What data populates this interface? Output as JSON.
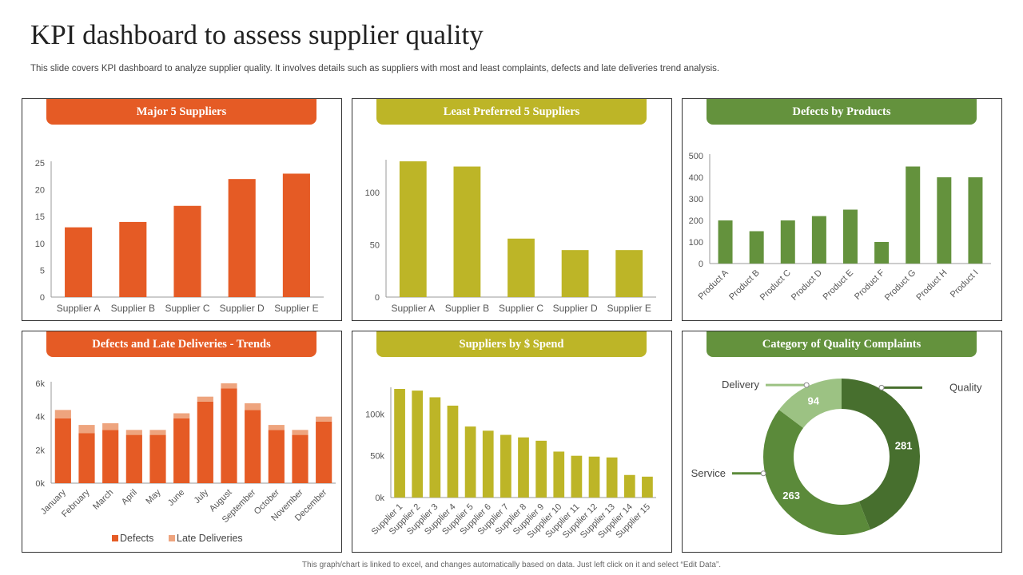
{
  "title": "KPI dashboard to assess supplier quality",
  "subtitle": "This slide covers KPI dashboard to analyze  supplier quality. It involves  details such as suppliers with most and least complaints, defects and late deliveries trend analysis.",
  "footer": "This graph/chart is linked to excel, and changes automatically based on data. Just left click on it and select “Edit Data”.",
  "colors": {
    "orange": "#e55b25",
    "light_orange": "#eea47e",
    "olive": "#bdb527",
    "green": "#64923d",
    "dark_green": "#476f2e",
    "mid_green": "#5b8a3a",
    "light_green": "#9cc283"
  },
  "panels": {
    "p1": {
      "title": "Major 5 Suppliers"
    },
    "p2": {
      "title": "Least Preferred  5 Suppliers"
    },
    "p3": {
      "title": "Defects by Products"
    },
    "p4": {
      "title": "Defects and Late Deliveries - Trends"
    },
    "p5": {
      "title": "Suppliers by $ Spend"
    },
    "p6": {
      "title": "Category of Quality Complaints"
    }
  },
  "chart_data": [
    {
      "type": "bar",
      "title": "Major 5 Suppliers",
      "categories": [
        "Supplier A",
        "Supplier B",
        "Supplier C",
        "Supplier D",
        "Supplier E"
      ],
      "values": [
        13,
        14,
        17,
        22,
        23
      ],
      "ylim": [
        0,
        25
      ],
      "yticks": [
        0,
        5,
        10,
        15,
        20,
        25
      ],
      "ytick_labels": [
        "0",
        "5",
        "10",
        "15",
        "20",
        "25"
      ],
      "color": "#e55b25"
    },
    {
      "type": "bar",
      "title": "Least Preferred  5 Suppliers",
      "categories": [
        "Supplier A",
        "Supplier B",
        "Supplier C",
        "Supplier D",
        "Supplier E"
      ],
      "values": [
        130,
        125,
        56,
        45,
        45
      ],
      "ylim": [
        0,
        130
      ],
      "yticks": [
        0,
        50,
        100
      ],
      "ytick_labels": [
        "0",
        "50",
        "100"
      ],
      "color": "#bdb527"
    },
    {
      "type": "bar",
      "title": "Defects by Products",
      "categories": [
        "Product A",
        "Product B",
        "Product C",
        "Product D",
        "Product E",
        "Product F",
        "Product G",
        "Product H",
        "Product I"
      ],
      "values": [
        200,
        150,
        200,
        220,
        250,
        100,
        450,
        400,
        400
      ],
      "ylim": [
        0,
        500
      ],
      "yticks": [
        0,
        100,
        200,
        300,
        400,
        500
      ],
      "ytick_labels": [
        "0",
        "100",
        "200",
        "300",
        "400",
        "500"
      ],
      "color": "#64923d"
    },
    {
      "type": "bar",
      "stacked": true,
      "title": "Defects and Late Deliveries - Trends",
      "categories": [
        "January",
        "February",
        "March",
        "April",
        "May",
        "June",
        "July",
        "August",
        "September",
        "October",
        "November",
        "December"
      ],
      "series": [
        {
          "name": "Defects",
          "values": [
            3900,
            3000,
            3200,
            2900,
            2900,
            3900,
            4900,
            5700,
            4400,
            3200,
            2900,
            3700
          ],
          "color": "#e55b25"
        },
        {
          "name": "Late Deliveries",
          "values": [
            500,
            500,
            400,
            300,
            300,
            300,
            300,
            300,
            400,
            300,
            300,
            300
          ],
          "color": "#eea47e"
        }
      ],
      "ylim": [
        0,
        6000
      ],
      "yticks": [
        0,
        2000,
        4000,
        6000
      ],
      "ytick_labels": [
        "0k",
        "2k",
        "4k",
        "6k"
      ],
      "legend": "bottom"
    },
    {
      "type": "bar",
      "title": "Suppliers by $ Spend",
      "categories": [
        "Supplier 1",
        "Supplier 2",
        "Supplier 3",
        "Supplier 4",
        "Supplier 5",
        "Supplier 6",
        "Supplier 7",
        "Supplier 8",
        "Supplier 9",
        "Supplier 10",
        "Supplier 11",
        "Supplier 12",
        "Supplier 13",
        "Supplier 14",
        "Supplier 15"
      ],
      "values": [
        130000,
        128000,
        120000,
        110000,
        85000,
        80000,
        75000,
        72000,
        68000,
        55000,
        50000,
        49000,
        48000,
        27000,
        25000
      ],
      "ylim": [
        0,
        130000
      ],
      "yticks": [
        0,
        50000,
        100000
      ],
      "ytick_labels": [
        "0k",
        "50k",
        "100k"
      ],
      "color": "#bdb527"
    },
    {
      "type": "pie",
      "donut": true,
      "title": "Category of Quality Complaints",
      "slices": [
        {
          "label": "Quality",
          "value": 281,
          "color": "#476f2e"
        },
        {
          "label": "Service",
          "value": 263,
          "color": "#5b8a3a"
        },
        {
          "label": "Delivery",
          "value": 94,
          "color": "#9cc283"
        }
      ]
    }
  ]
}
